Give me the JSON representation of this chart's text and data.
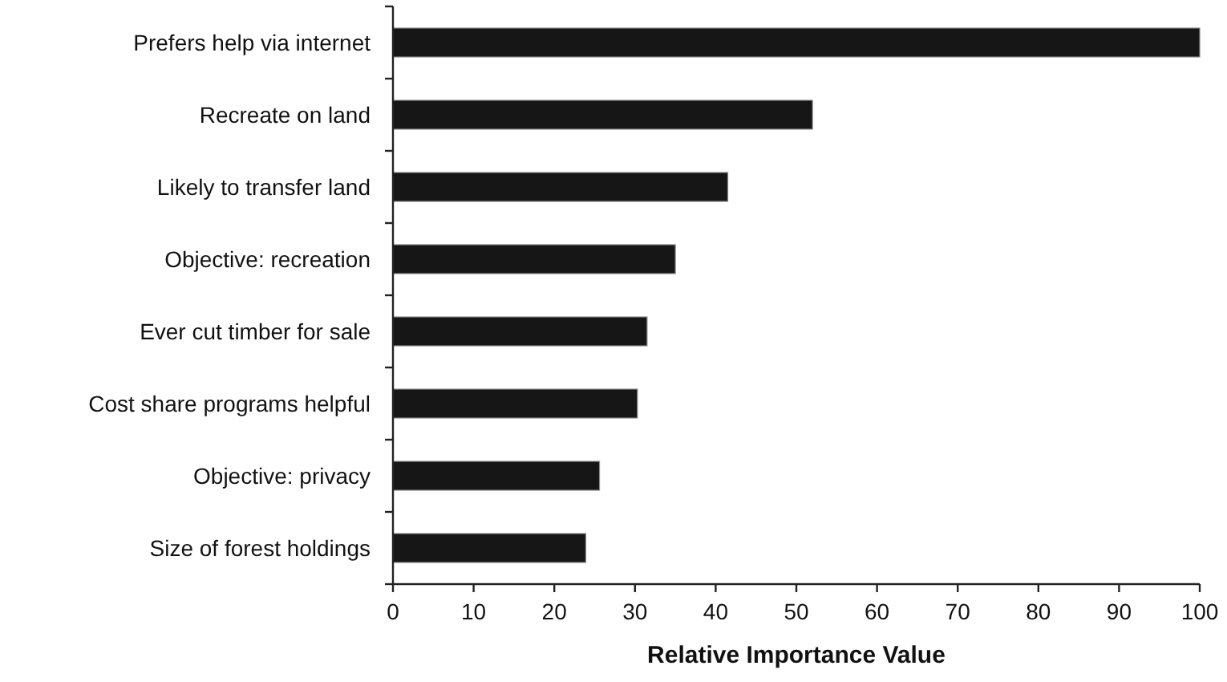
{
  "chart_data": {
    "type": "bar",
    "orientation": "horizontal",
    "xlabel": "Relative Importance Value",
    "categories": [
      "Prefers help via internet",
      "Recreate on land",
      "Likely to transfer land",
      "Objective: recreation",
      "Ever cut timber for sale",
      "Cost share programs helpful",
      "Objective: privacy",
      "Size of forest holdings"
    ],
    "values": [
      100,
      52,
      41.5,
      35,
      31.5,
      30.3,
      25.6,
      23.9
    ],
    "color": "#161616",
    "xlim": [
      0,
      100
    ],
    "xticks": [
      0,
      10,
      20,
      30,
      40,
      50,
      60,
      70,
      80,
      90,
      100
    ],
    "grid": false
  }
}
